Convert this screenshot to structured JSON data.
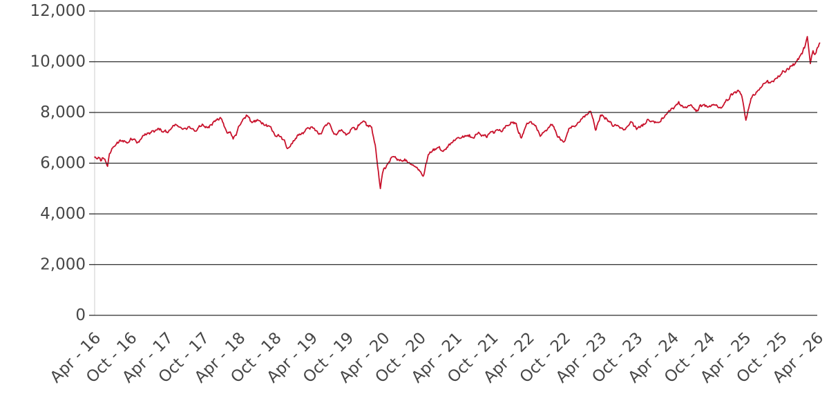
{
  "chart_data": {
    "type": "line",
    "title": "",
    "legend": "none",
    "grid": "horizontal",
    "x_axis": {
      "unit": "months_since_2016-04",
      "tick_interval_months": 6,
      "tick_labels": [
        "Apr - 16",
        "Oct - 16",
        "Apr - 17",
        "Oct - 17",
        "Apr - 18",
        "Oct - 18",
        "Apr - 19",
        "Oct - 19",
        "Apr - 20",
        "Oct - 20",
        "Apr - 21",
        "Oct - 21",
        "Apr - 22",
        "Oct - 22",
        "Apr - 23",
        "Oct - 23",
        "Apr - 24",
        "Oct - 24",
        "Apr - 25",
        "Oct - 25",
        "Apr - 26"
      ]
    },
    "y_axis": {
      "min": 0,
      "max": 12000,
      "tick_step": 2000,
      "tick_labels": [
        "0",
        "2,000",
        "4,000",
        "6,000",
        "8,000",
        "10,000",
        "12,000"
      ]
    },
    "style": {
      "line_color": "#c8112b",
      "grid_color": "#2b2b2b",
      "axis_line_color": "#cccccc",
      "label_color": "#474747"
    },
    "series": [
      {
        "points": [
          [
            0,
            6240
          ],
          [
            0.5,
            6180
          ],
          [
            1,
            6110
          ],
          [
            1.5,
            6200
          ],
          [
            1.9,
            6020
          ],
          [
            2.15,
            5870
          ],
          [
            2.45,
            6380
          ],
          [
            3,
            6620
          ],
          [
            3.5,
            6700
          ],
          [
            4,
            6830
          ],
          [
            4.5,
            6860
          ],
          [
            5,
            6890
          ],
          [
            5.5,
            6820
          ],
          [
            6,
            6990
          ],
          [
            6.5,
            6950
          ],
          [
            7,
            6780
          ],
          [
            7.5,
            6900
          ],
          [
            8,
            7080
          ],
          [
            8.5,
            7120
          ],
          [
            9,
            7190
          ],
          [
            9.5,
            7260
          ],
          [
            10,
            7270
          ],
          [
            10.5,
            7350
          ],
          [
            11,
            7330
          ],
          [
            11.5,
            7250
          ],
          [
            12,
            7210
          ],
          [
            12.5,
            7300
          ],
          [
            13,
            7480
          ],
          [
            13.5,
            7520
          ],
          [
            14,
            7440
          ],
          [
            14.5,
            7350
          ],
          [
            15,
            7390
          ],
          [
            15.5,
            7430
          ],
          [
            16,
            7380
          ],
          [
            16.5,
            7290
          ],
          [
            17,
            7320
          ],
          [
            17.5,
            7450
          ],
          [
            18,
            7530
          ],
          [
            18.5,
            7460
          ],
          [
            19,
            7400
          ],
          [
            19.5,
            7500
          ],
          [
            20,
            7650
          ],
          [
            20.5,
            7720
          ],
          [
            21,
            7770
          ],
          [
            21.5,
            7480
          ],
          [
            22,
            7170
          ],
          [
            22.5,
            7250
          ],
          [
            23,
            6960
          ],
          [
            23.5,
            7100
          ],
          [
            24,
            7480
          ],
          [
            24.5,
            7680
          ],
          [
            25,
            7790
          ],
          [
            25.4,
            7870
          ],
          [
            26,
            7640
          ],
          [
            26.5,
            7680
          ],
          [
            27,
            7740
          ],
          [
            27.5,
            7660
          ],
          [
            28,
            7540
          ],
          [
            28.5,
            7510
          ],
          [
            29,
            7480
          ],
          [
            29.5,
            7270
          ],
          [
            30,
            7060
          ],
          [
            30.5,
            7120
          ],
          [
            31,
            7040
          ],
          [
            31.5,
            6920
          ],
          [
            32,
            6560
          ],
          [
            32.3,
            6640
          ],
          [
            33,
            6880
          ],
          [
            33.5,
            7000
          ],
          [
            34,
            7130
          ],
          [
            34.5,
            7180
          ],
          [
            35,
            7310
          ],
          [
            35.5,
            7380
          ],
          [
            36,
            7440
          ],
          [
            36.5,
            7350
          ],
          [
            37,
            7220
          ],
          [
            37.5,
            7160
          ],
          [
            38,
            7390
          ],
          [
            38.5,
            7490
          ],
          [
            39,
            7560
          ],
          [
            39.5,
            7280
          ],
          [
            40,
            7130
          ],
          [
            40.5,
            7250
          ],
          [
            41,
            7330
          ],
          [
            41.5,
            7220
          ],
          [
            42,
            7160
          ],
          [
            42.5,
            7310
          ],
          [
            43,
            7400
          ],
          [
            43.5,
            7330
          ],
          [
            44,
            7560
          ],
          [
            44.5,
            7640
          ],
          [
            45,
            7600
          ],
          [
            45.5,
            7450
          ],
          [
            46,
            7400
          ],
          [
            46.6,
            6700
          ],
          [
            47,
            5850
          ],
          [
            47.45,
            4990
          ],
          [
            47.8,
            5600
          ],
          [
            48,
            5780
          ],
          [
            48.5,
            5940
          ],
          [
            49,
            6070
          ],
          [
            49.6,
            6280
          ],
          [
            50,
            6230
          ],
          [
            50.5,
            6140
          ],
          [
            51,
            6080
          ],
          [
            51.5,
            6150
          ],
          [
            52,
            6020
          ],
          [
            52.5,
            5960
          ],
          [
            53,
            5880
          ],
          [
            53.5,
            5840
          ],
          [
            54,
            5700
          ],
          [
            54.55,
            5470
          ],
          [
            55,
            5950
          ],
          [
            55.4,
            6320
          ],
          [
            56,
            6460
          ],
          [
            56.5,
            6550
          ],
          [
            57,
            6640
          ],
          [
            57.5,
            6520
          ],
          [
            58,
            6510
          ],
          [
            58.5,
            6620
          ],
          [
            59,
            6740
          ],
          [
            59.5,
            6860
          ],
          [
            60,
            6950
          ],
          [
            60.5,
            7010
          ],
          [
            61,
            7030
          ],
          [
            61.5,
            7090
          ],
          [
            62,
            7110
          ],
          [
            62.5,
            7030
          ],
          [
            63,
            7000
          ],
          [
            63.5,
            7120
          ],
          [
            64,
            7160
          ],
          [
            64.5,
            7090
          ],
          [
            65,
            7040
          ],
          [
            65.5,
            7140
          ],
          [
            66,
            7230
          ],
          [
            66.5,
            7280
          ],
          [
            67,
            7310
          ],
          [
            67.5,
            7260
          ],
          [
            68,
            7390
          ],
          [
            68.5,
            7480
          ],
          [
            69,
            7550
          ],
          [
            69.5,
            7610
          ],
          [
            70,
            7560
          ],
          [
            70.85,
            6980
          ],
          [
            71.3,
            7280
          ],
          [
            71.6,
            7450
          ],
          [
            72,
            7580
          ],
          [
            72.5,
            7620
          ],
          [
            73,
            7540
          ],
          [
            73.5,
            7310
          ],
          [
            74,
            7060
          ],
          [
            74.5,
            7210
          ],
          [
            75,
            7290
          ],
          [
            75.5,
            7420
          ],
          [
            76,
            7510
          ],
          [
            76.5,
            7280
          ],
          [
            77,
            7030
          ],
          [
            77.5,
            6920
          ],
          [
            78,
            6870
          ],
          [
            78.5,
            7180
          ],
          [
            79,
            7400
          ],
          [
            79.5,
            7460
          ],
          [
            80,
            7480
          ],
          [
            80.5,
            7620
          ],
          [
            81,
            7790
          ],
          [
            81.5,
            7900
          ],
          [
            82,
            7960
          ],
          [
            82.4,
            8030
          ],
          [
            83.2,
            7290
          ],
          [
            83.6,
            7600
          ],
          [
            84,
            7880
          ],
          [
            84.5,
            7840
          ],
          [
            85,
            7760
          ],
          [
            85.5,
            7620
          ],
          [
            86,
            7480
          ],
          [
            86.5,
            7520
          ],
          [
            87,
            7440
          ],
          [
            87.5,
            7380
          ],
          [
            88,
            7330
          ],
          [
            88.5,
            7460
          ],
          [
            89,
            7620
          ],
          [
            89.5,
            7480
          ],
          [
            90,
            7340
          ],
          [
            90.5,
            7420
          ],
          [
            91,
            7470
          ],
          [
            91.5,
            7560
          ],
          [
            92,
            7700
          ],
          [
            92.5,
            7640
          ],
          [
            93,
            7590
          ],
          [
            93.5,
            7620
          ],
          [
            94,
            7660
          ],
          [
            94.5,
            7780
          ],
          [
            95,
            7950
          ],
          [
            95.5,
            8050
          ],
          [
            96,
            8160
          ],
          [
            96.5,
            8300
          ],
          [
            97,
            8420
          ],
          [
            97.5,
            8280
          ],
          [
            98,
            8210
          ],
          [
            98.5,
            8260
          ],
          [
            99,
            8300
          ],
          [
            99.5,
            8180
          ],
          [
            100,
            8080
          ],
          [
            100.5,
            8270
          ],
          [
            101,
            8290
          ],
          [
            101.5,
            8260
          ],
          [
            102,
            8240
          ],
          [
            102.5,
            8300
          ],
          [
            103,
            8280
          ],
          [
            103.5,
            8220
          ],
          [
            104,
            8150
          ],
          [
            104.5,
            8320
          ],
          [
            105,
            8500
          ],
          [
            105.5,
            8620
          ],
          [
            106,
            8700
          ],
          [
            106.5,
            8780
          ],
          [
            107,
            8830
          ],
          [
            107.5,
            8630
          ],
          [
            108.15,
            7680
          ],
          [
            108.5,
            8100
          ],
          [
            109,
            8550
          ],
          [
            109.5,
            8690
          ],
          [
            110,
            8810
          ],
          [
            110.5,
            8950
          ],
          [
            111,
            9110
          ],
          [
            111.5,
            9160
          ],
          [
            112,
            9190
          ],
          [
            112.5,
            9250
          ],
          [
            113,
            9320
          ],
          [
            113.5,
            9420
          ],
          [
            114,
            9520
          ],
          [
            114.5,
            9610
          ],
          [
            115,
            9720
          ],
          [
            115.5,
            9810
          ],
          [
            116,
            9900
          ],
          [
            116.5,
            10000
          ],
          [
            117,
            10140
          ],
          [
            117.5,
            10330
          ],
          [
            118,
            10620
          ],
          [
            118.35,
            11000
          ],
          [
            118.85,
            9920
          ],
          [
            119.3,
            10430
          ],
          [
            119.6,
            10290
          ],
          [
            120,
            10540
          ],
          [
            120.4,
            10720
          ]
        ]
      }
    ]
  }
}
